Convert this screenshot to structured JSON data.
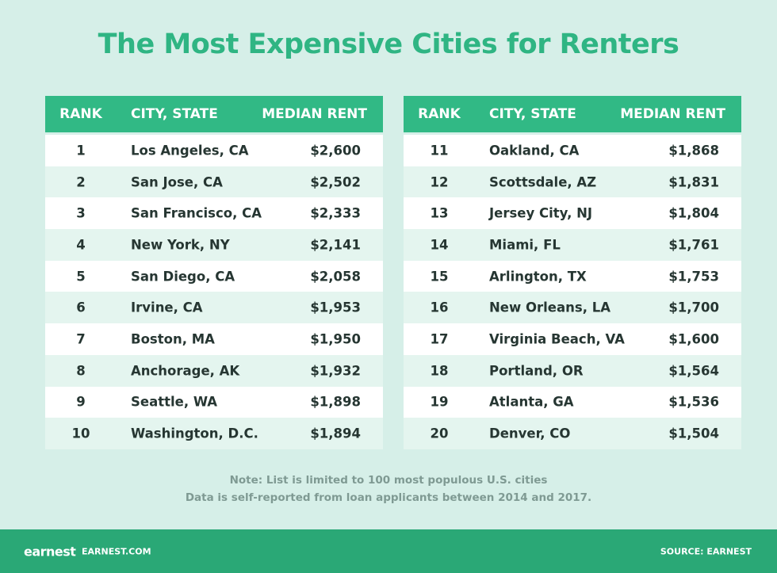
{
  "title": "The Most Expensive Cities for Renters",
  "tables": [
    {
      "headers": [
        "RANK",
        "CITY, STATE",
        "MEDIAN RENT"
      ],
      "rows": [
        [
          "1",
          "Los Angeles, CA",
          "$2,600"
        ],
        [
          "2",
          "San Jose, CA",
          "$2,502"
        ],
        [
          "3",
          "San Francisco, CA",
          "$2,333"
        ],
        [
          "4",
          "New York, NY",
          "$2,141"
        ],
        [
          "5",
          "San Diego, CA",
          "$2,058"
        ],
        [
          "6",
          "Irvine, CA",
          "$1,953"
        ],
        [
          "7",
          "Boston, MA",
          "$1,950"
        ],
        [
          "8",
          "Anchorage, AK",
          "$1,932"
        ],
        [
          "9",
          "Seattle, WA",
          "$1,898"
        ],
        [
          "10",
          "Washington, D.C.",
          "$1,894"
        ]
      ]
    },
    {
      "headers": [
        "RANK",
        "CITY, STATE",
        "MEDIAN RENT"
      ],
      "rows": [
        [
          "11",
          "Oakland, CA",
          "$1,868"
        ],
        [
          "12",
          "Scottsdale, AZ",
          "$1,831"
        ],
        [
          "13",
          "Jersey City, NJ",
          "$1,804"
        ],
        [
          "14",
          "Miami, FL",
          "$1,761"
        ],
        [
          "15",
          "Arlington, TX",
          "$1,753"
        ],
        [
          "16",
          "New Orleans, LA",
          "$1,700"
        ],
        [
          "17",
          "Virginia Beach, VA",
          "$1,600"
        ],
        [
          "18",
          "Portland, OR",
          "$1,564"
        ],
        [
          "19",
          "Atlanta, GA",
          "$1,536"
        ],
        [
          "20",
          "Denver, CO",
          "$1,504"
        ]
      ]
    }
  ],
  "note": [
    "Note: List is limited to 100 most populous U.S. cities",
    "Data is self-reported from loan applicants between 2014 and 2017."
  ],
  "footer": {
    "logo": "earnest",
    "site": "EARNEST.COM",
    "source": "SOURCE: EARNEST"
  }
}
